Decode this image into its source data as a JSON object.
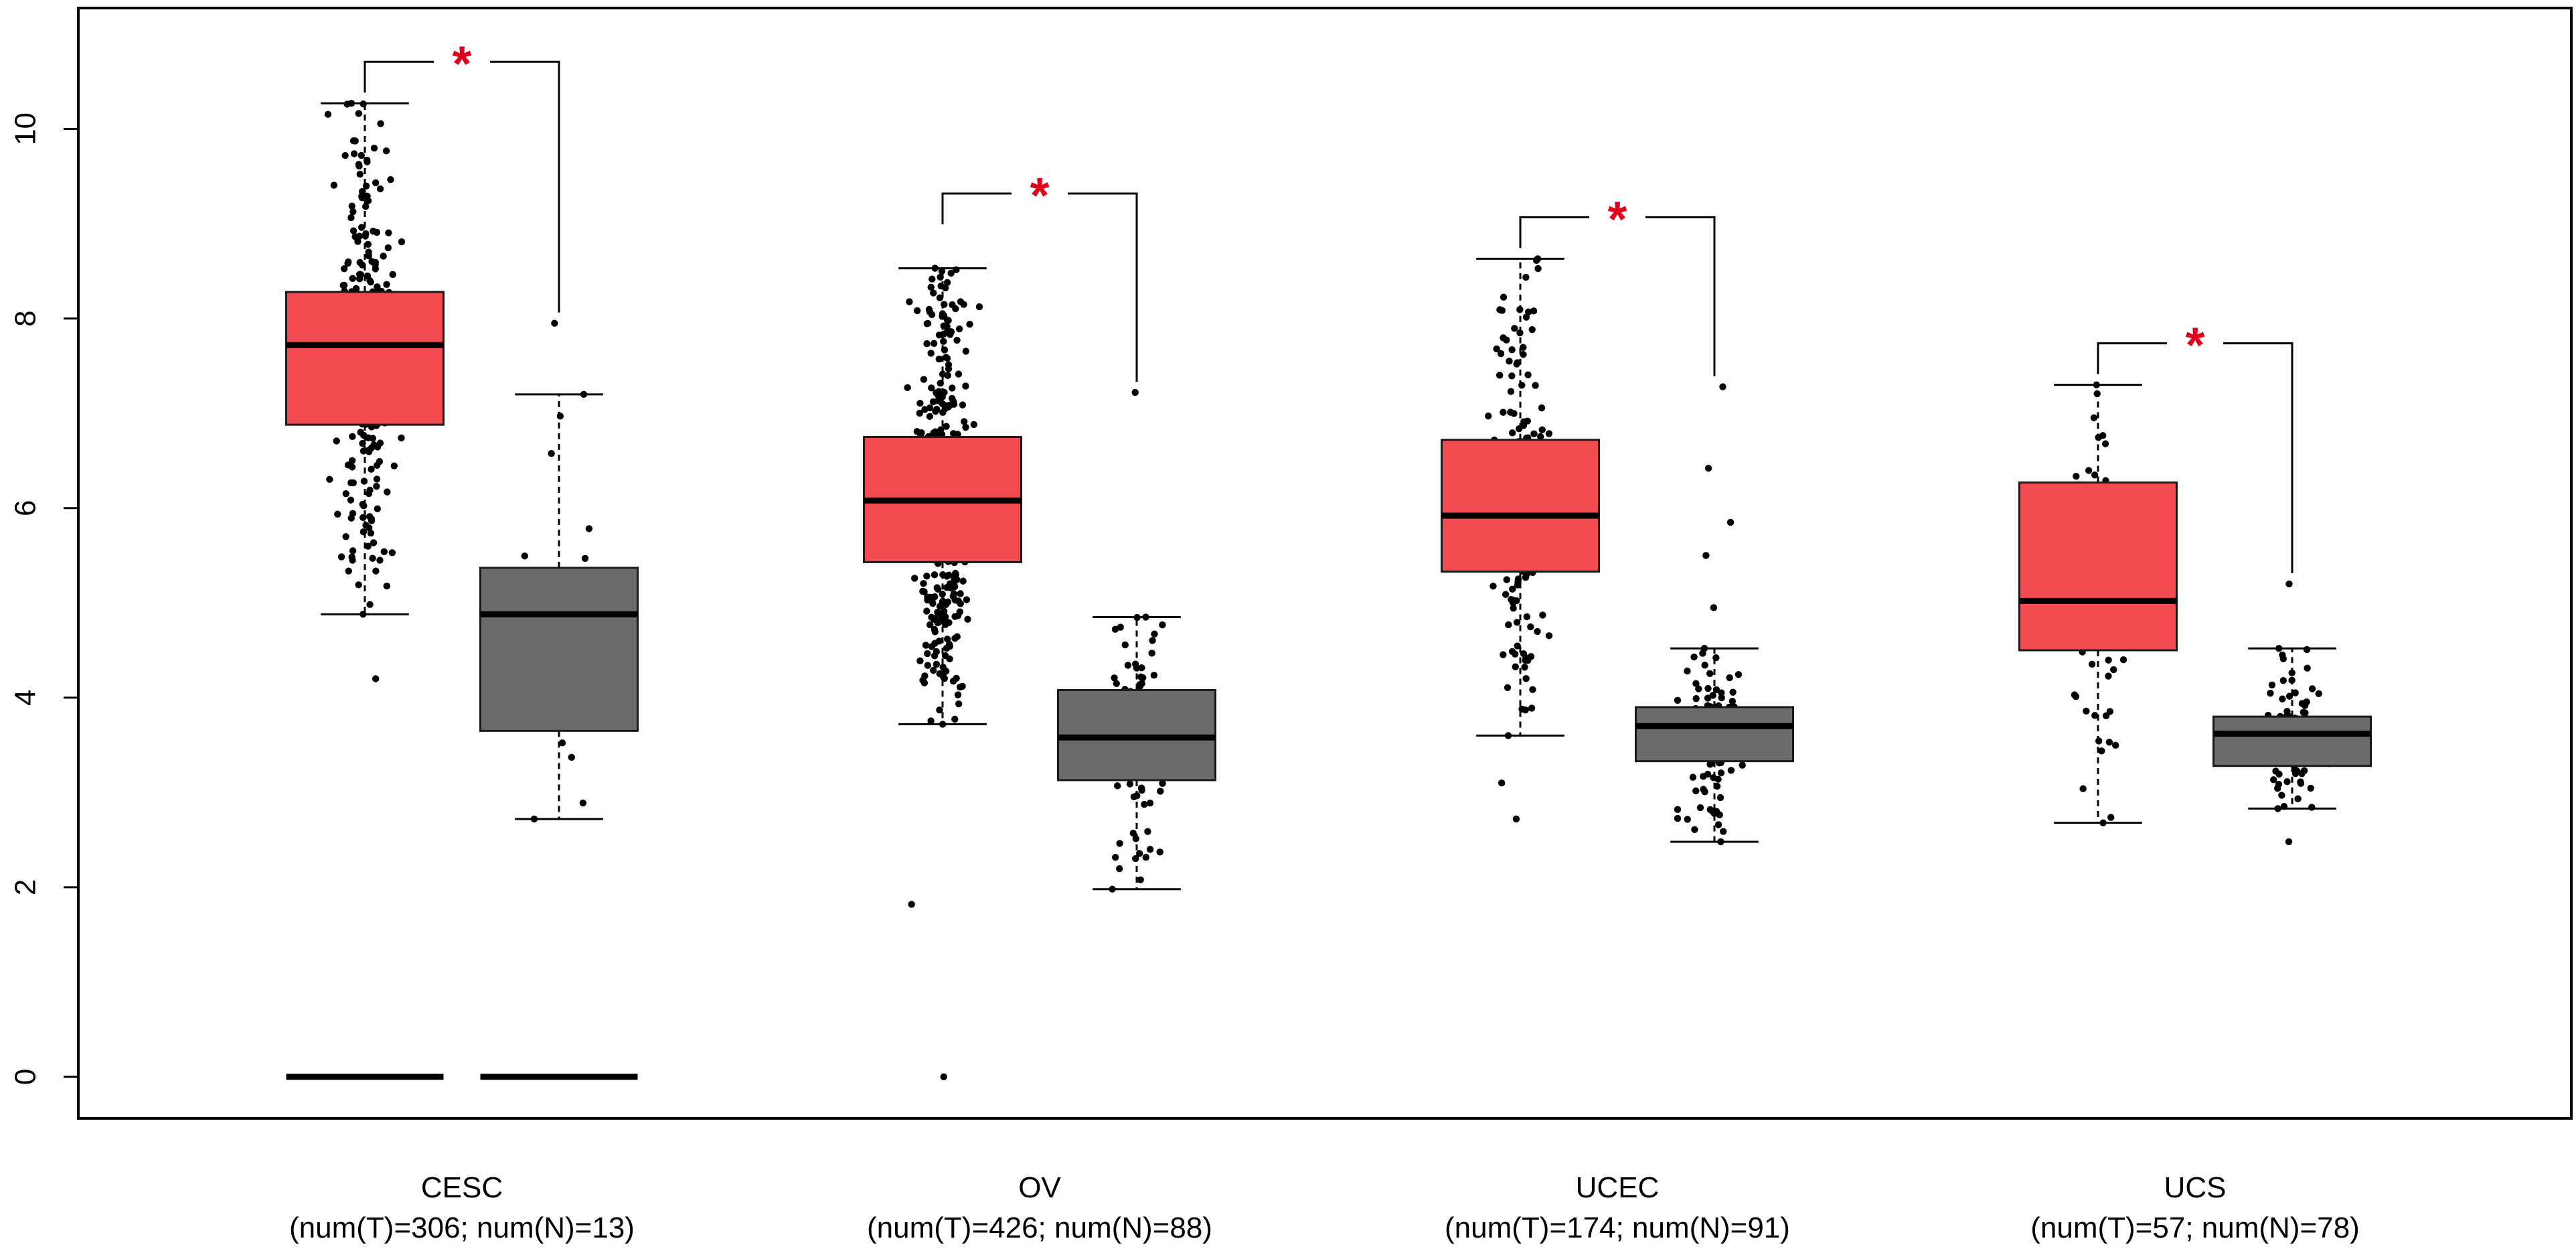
{
  "chart_data": {
    "type": "box",
    "title": "",
    "xlabel": "",
    "ylabel": "",
    "ylim": [
      -0.45,
      11.2
    ],
    "yticks": [
      0,
      2,
      4,
      6,
      8,
      10
    ],
    "ytick_labels": [
      "0",
      "2",
      "4",
      "6",
      "8",
      "10"
    ],
    "grid": false,
    "legend": "none",
    "colors": {
      "tumor": "#f24c52",
      "normal": "#6b6b6b",
      "significance": "#e3001b",
      "points": "#000000"
    },
    "groups": [
      {
        "name": "CESC",
        "counts_label": "(num(T)=306; num(N)=13)",
        "significance": "*",
        "tumor": {
          "n": 306,
          "q1": 6.88,
          "median": 7.72,
          "q3": 8.28,
          "whisker_low": 4.88,
          "whisker_high": 10.27,
          "min_point": 4.2,
          "max_point": 10.27,
          "outliers": [
            4.2
          ],
          "has_zero_line": true
        },
        "normal": {
          "n": 13,
          "q1": 3.65,
          "median": 4.88,
          "q3": 5.37,
          "whisker_low": 2.72,
          "whisker_high": 7.2,
          "min_point": 2.72,
          "max_point": 7.95,
          "outliers": [
            7.95
          ],
          "has_zero_line": true
        }
      },
      {
        "name": "OV",
        "counts_label": "(num(T)=426; num(N)=88)",
        "significance": "*",
        "tumor": {
          "n": 426,
          "q1": 5.43,
          "median": 6.08,
          "q3": 6.75,
          "whisker_low": 3.72,
          "whisker_high": 8.53,
          "min_point": 0.0,
          "max_point": 8.88,
          "outliers": [
            1.82,
            0.0
          ],
          "has_zero_line": false
        },
        "normal": {
          "n": 88,
          "q1": 3.13,
          "median": 3.58,
          "q3": 4.08,
          "whisker_low": 1.98,
          "whisker_high": 4.85,
          "min_point": 1.98,
          "max_point": 7.22,
          "outliers": [
            7.22
          ],
          "has_zero_line": false
        }
      },
      {
        "name": "UCEC",
        "counts_label": "(num(T)=174; num(N)=91)",
        "significance": "*",
        "tumor": {
          "n": 174,
          "q1": 5.33,
          "median": 5.92,
          "q3": 6.72,
          "whisker_low": 3.6,
          "whisker_high": 8.63,
          "min_point": 2.72,
          "max_point": 8.63,
          "outliers": [
            3.1,
            2.72
          ],
          "has_zero_line": false
        },
        "normal": {
          "n": 91,
          "q1": 3.33,
          "median": 3.7,
          "q3": 3.9,
          "whisker_low": 2.48,
          "whisker_high": 4.52,
          "min_point": 2.48,
          "max_point": 7.28,
          "outliers": [
            4.95,
            5.5,
            5.85,
            6.42,
            7.28
          ],
          "has_zero_line": false
        }
      },
      {
        "name": "UCS",
        "counts_label": "(num(T)=57; num(N)=78)",
        "significance": "*",
        "tumor": {
          "n": 57,
          "q1": 4.5,
          "median": 5.02,
          "q3": 6.27,
          "whisker_low": 2.68,
          "whisker_high": 7.3,
          "min_point": 2.68,
          "max_point": 7.3,
          "outliers": [],
          "has_zero_line": false
        },
        "normal": {
          "n": 78,
          "q1": 3.28,
          "median": 3.62,
          "q3": 3.8,
          "whisker_low": 2.83,
          "whisker_high": 4.52,
          "min_point": 2.48,
          "max_point": 5.2,
          "outliers": [
            5.2,
            2.48
          ],
          "has_zero_line": false
        }
      }
    ]
  }
}
